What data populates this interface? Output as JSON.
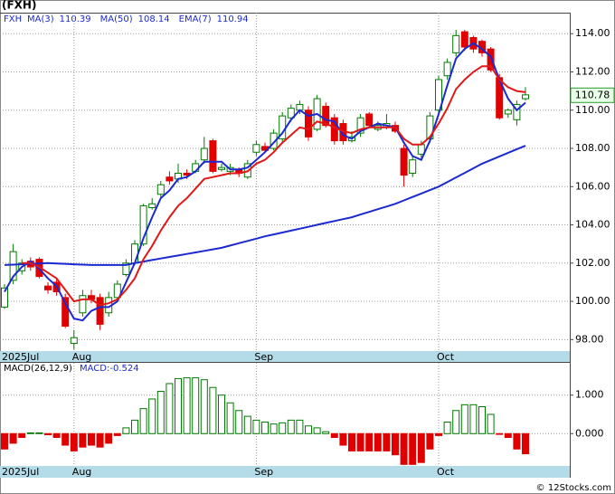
{
  "chart_data": [
    {
      "type": "candlestick",
      "title": "(FXH)",
      "symbol": "FXH",
      "categories": [
        "2025Jul",
        null,
        null,
        null,
        null,
        null,
        null,
        null,
        "Aug",
        null,
        null,
        null,
        null,
        null,
        null,
        null,
        null,
        null,
        null,
        null,
        null,
        null,
        null,
        null,
        null,
        null,
        null,
        null,
        null,
        "Sep",
        null,
        null,
        null,
        null,
        null,
        null,
        null,
        null,
        null,
        null,
        null,
        null,
        null,
        null,
        null,
        null,
        null,
        null,
        null,
        null,
        "Oct",
        null,
        null,
        null,
        null,
        null,
        null,
        null,
        null,
        null,
        null
      ],
      "open": [
        99.7,
        101.1,
        101.6,
        102.1,
        102.2,
        100.8,
        101.0,
        100.2,
        97.8,
        99.4,
        100.3,
        100.2,
        99.4,
        100.2,
        101.4,
        102.0,
        103.0,
        104.9,
        105.6,
        106.5,
        106.4,
        106.7,
        106.8,
        107.4,
        108.4,
        106.9,
        106.8,
        106.9,
        106.5,
        107.8,
        108.1,
        108.0,
        108.5,
        109.6,
        110.0,
        110.0,
        109.0,
        110.2,
        109.6,
        109.3,
        108.4,
        108.8,
        109.8,
        109.0,
        109.1,
        109.2,
        108.0,
        106.7,
        107.7,
        108.5,
        110.0,
        111.8,
        113.0,
        114.1,
        113.8,
        113.6,
        113.2,
        111.7,
        109.8,
        109.5,
        110.6
      ],
      "high": [
        100.9,
        103.0,
        102.2,
        102.3,
        102.3,
        101.0,
        101.2,
        100.4,
        98.5,
        100.6,
        100.6,
        100.4,
        100.5,
        101.1,
        102.2,
        103.2,
        105.1,
        105.4,
        106.3,
        106.8,
        107.2,
        106.9,
        107.4,
        108.6,
        108.5,
        107.2,
        107.2,
        107.0,
        107.4,
        108.4,
        108.3,
        109.0,
        109.9,
        110.3,
        110.5,
        110.2,
        110.8,
        110.4,
        109.8,
        109.5,
        108.9,
        109.8,
        109.9,
        109.4,
        109.8,
        109.4,
        108.2,
        107.6,
        108.4,
        109.9,
        111.8,
        112.7,
        114.2,
        114.2,
        113.9,
        113.7,
        113.3,
        111.9,
        110.1,
        110.5,
        111.2
      ],
      "low": [
        99.6,
        100.9,
        101.4,
        101.6,
        101.2,
        100.4,
        100.3,
        98.6,
        97.5,
        99.2,
        99.9,
        98.5,
        99.2,
        100.0,
        101.3,
        101.9,
        102.9,
        104.8,
        105.4,
        106.1,
        106.2,
        106.4,
        106.7,
        107.2,
        106.7,
        106.8,
        106.6,
        106.5,
        106.4,
        107.6,
        107.8,
        107.9,
        108.3,
        109.4,
        109.8,
        108.4,
        108.9,
        109.1,
        108.2,
        108.2,
        108.3,
        108.6,
        109.1,
        108.9,
        109.0,
        108.8,
        106.0,
        106.5,
        107.5,
        108.3,
        109.8,
        111.6,
        112.8,
        113.1,
        113.0,
        112.8,
        112.0,
        109.5,
        109.6,
        109.2,
        110.5
      ],
      "close": [
        100.7,
        102.6,
        102.0,
        101.8,
        101.3,
        100.6,
        100.5,
        98.7,
        98.1,
        100.3,
        100.1,
        98.8,
        100.2,
        100.9,
        102.0,
        103.0,
        105.0,
        105.1,
        106.1,
        106.3,
        106.7,
        106.6,
        107.2,
        108.0,
        106.8,
        107.0,
        107.0,
        106.7,
        107.2,
        108.2,
        107.9,
        108.8,
        109.7,
        110.1,
        110.3,
        108.6,
        110.6,
        109.2,
        108.4,
        108.4,
        108.6,
        109.6,
        109.2,
        109.2,
        109.3,
        108.9,
        106.6,
        107.4,
        108.2,
        109.7,
        111.6,
        112.5,
        113.9,
        113.3,
        113.2,
        113.0,
        112.1,
        109.6,
        110.0,
        110.3,
        110.8
      ],
      "up_color": "#007a00",
      "down_color": "#e00000",
      "series": [
        {
          "name": "MA(3)",
          "legend_value": 110.39,
          "color": "#1a2ad0",
          "values": [
            100.5,
            101.3,
            101.8,
            102.1,
            101.7,
            101.2,
            100.8,
            99.9,
            99.1,
            99.0,
            99.5,
            99.7,
            99.7,
            100.0,
            101.0,
            102.0,
            103.3,
            104.4,
            105.4,
            105.8,
            106.4,
            106.5,
            106.8,
            107.3,
            107.3,
            107.3,
            106.9,
            106.9,
            107.0,
            107.4,
            107.8,
            108.3,
            108.8,
            109.5,
            110.0,
            109.7,
            109.8,
            109.5,
            109.4,
            108.7,
            108.5,
            108.9,
            109.1,
            109.3,
            109.2,
            109.1,
            108.3,
            107.6,
            107.4,
            108.4,
            109.8,
            111.3,
            112.7,
            113.2,
            113.5,
            113.2,
            112.8,
            111.6,
            110.6,
            110.0,
            110.39
          ]
        },
        {
          "name": "MA(50)",
          "legend_value": 108.14,
          "color": "#1a2ad0",
          "values": [
            101.9,
            101.92,
            101.94,
            101.96,
            101.98,
            102.0,
            101.98,
            101.96,
            101.94,
            101.92,
            101.9,
            101.9,
            101.9,
            101.9,
            101.9,
            102.0,
            102.08,
            102.16,
            102.24,
            102.32,
            102.4,
            102.48,
            102.56,
            102.64,
            102.72,
            102.8,
            102.92,
            103.04,
            103.16,
            103.28,
            103.4,
            103.5,
            103.6,
            103.7,
            103.8,
            103.9,
            104.0,
            104.1,
            104.2,
            104.3,
            104.4,
            104.54,
            104.68,
            104.82,
            104.96,
            105.1,
            105.28,
            105.46,
            105.64,
            105.82,
            106.0,
            106.24,
            106.48,
            106.72,
            106.96,
            107.2,
            107.39,
            107.58,
            107.77,
            107.96,
            108.14
          ]
        },
        {
          "name": "EMA(7)",
          "legend_value": 110.94,
          "color": "#e01818",
          "values": [
            null,
            null,
            102.0,
            102.0,
            101.8,
            101.5,
            101.2,
            100.6,
            100.0,
            100.1,
            100.1,
            99.8,
            99.9,
            100.1,
            100.6,
            101.2,
            102.2,
            102.9,
            103.7,
            104.4,
            105.0,
            105.4,
            105.9,
            106.4,
            106.5,
            106.6,
            106.7,
            106.7,
            106.8,
            107.2,
            107.4,
            107.8,
            108.3,
            108.7,
            109.1,
            109.0,
            109.4,
            109.3,
            109.1,
            108.9,
            108.8,
            109.0,
            109.1,
            109.1,
            109.1,
            109.1,
            108.5,
            108.2,
            108.2,
            108.6,
            109.3,
            110.1,
            111.1,
            111.6,
            112.0,
            112.3,
            112.3,
            111.6,
            111.2,
            111.0,
            110.94
          ]
        }
      ],
      "last_price": 110.78,
      "ylim": [
        97.4,
        115.1
      ],
      "yticks": [
        {
          "value": 98,
          "label": "98.00"
        },
        {
          "value": 100,
          "label": "100.00"
        },
        {
          "value": 102,
          "label": "102.00"
        },
        {
          "value": 104,
          "label": "104.00"
        },
        {
          "value": 106,
          "label": "106.00"
        },
        {
          "value": 108,
          "label": "108.00"
        },
        {
          "value": 110,
          "label": "110.00"
        },
        {
          "value": 112,
          "label": "112.00"
        },
        {
          "value": 114,
          "label": "114.00"
        }
      ],
      "grid": true
    },
    {
      "type": "bar",
      "title": "MACD(26,12,9)",
      "subtitle": "MACD:-0.524",
      "categories": [
        "2025Jul",
        null,
        null,
        null,
        null,
        null,
        null,
        null,
        "Aug",
        null,
        null,
        null,
        null,
        null,
        null,
        null,
        null,
        null,
        null,
        null,
        null,
        null,
        null,
        null,
        null,
        null,
        null,
        null,
        null,
        "Sep",
        null,
        null,
        null,
        null,
        null,
        null,
        null,
        null,
        null,
        null,
        null,
        null,
        null,
        null,
        null,
        null,
        null,
        null,
        null,
        null,
        "Oct",
        null,
        null,
        null,
        null,
        null,
        null,
        null,
        null,
        null,
        null
      ],
      "values": [
        -0.4,
        -0.25,
        -0.1,
        0.02,
        0.02,
        -0.03,
        -0.1,
        -0.3,
        -0.45,
        -0.35,
        -0.3,
        -0.35,
        -0.25,
        -0.05,
        0.15,
        0.35,
        0.65,
        0.9,
        1.1,
        1.3,
        1.43,
        1.45,
        1.45,
        1.4,
        1.2,
        1.0,
        0.8,
        0.6,
        0.45,
        0.35,
        0.3,
        0.25,
        0.28,
        0.35,
        0.35,
        0.2,
        0.15,
        0.05,
        -0.1,
        -0.3,
        -0.45,
        -0.45,
        -0.45,
        -0.45,
        -0.45,
        -0.55,
        -0.8,
        -0.8,
        -0.75,
        -0.4,
        -0.05,
        0.3,
        0.6,
        0.75,
        0.75,
        0.7,
        0.5,
        -0.02,
        -0.1,
        -0.4,
        -0.524
      ],
      "up_color": "#007a00",
      "down_color": "#e00000",
      "ylim": [
        -0.84,
        1.84
      ],
      "yticks": [
        {
          "value": 0,
          "label": "0.000"
        },
        {
          "value": 1,
          "label": "1.000"
        }
      ],
      "grid": true
    }
  ],
  "footer": "© 12Stocks.com"
}
